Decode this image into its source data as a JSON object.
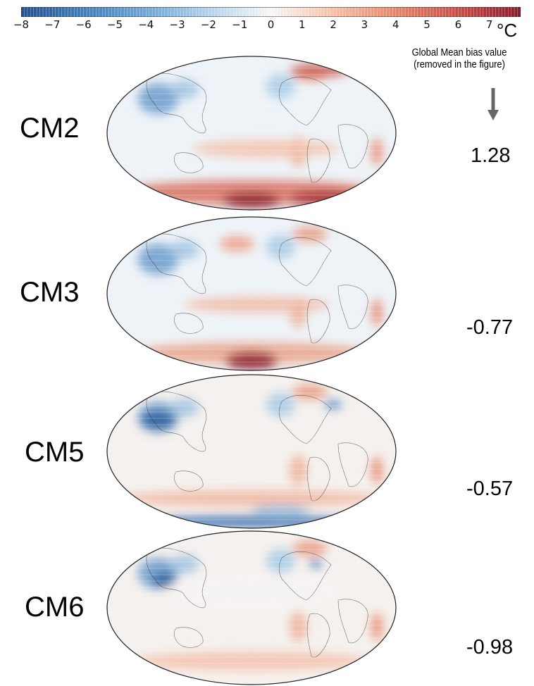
{
  "colorbar": {
    "ticks": [
      "−8",
      "−7",
      "−6",
      "−5",
      "−4",
      "−3",
      "−2",
      "−1",
      "0",
      "1",
      "2",
      "3",
      "4",
      "5",
      "6",
      "7"
    ],
    "unit": "°C",
    "range": [
      -8,
      8
    ],
    "colors": {
      "cold": "#2a5d9e",
      "neutral": "#f7f7f7",
      "warm": "#9b1e28"
    }
  },
  "bias_header": {
    "line1": "Global Mean bias value",
    "line2": "(removed in the figure)"
  },
  "panels": [
    {
      "model": "CM2",
      "global_mean_bias": "1.28"
    },
    {
      "model": "CM3",
      "global_mean_bias": "-0.77"
    },
    {
      "model": "CM5",
      "global_mean_bias": "-0.57"
    },
    {
      "model": "CM6",
      "global_mean_bias": "-0.98"
    }
  ]
}
